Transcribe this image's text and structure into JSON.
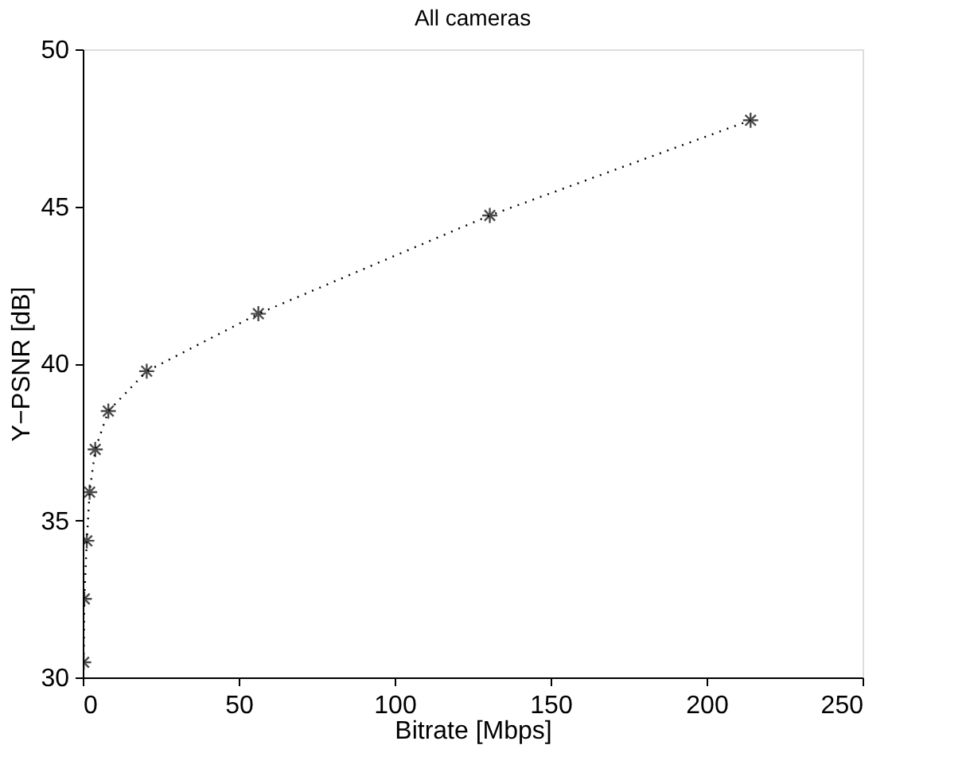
{
  "chart_data": {
    "type": "line",
    "title": "All cameras",
    "xlabel": "Bitrate [Mbps]",
    "ylabel": "Y−PSNR [dB]",
    "x": [
      0.3,
      0.5,
      1.3,
      2.2,
      4.0,
      8.2,
      20.5,
      56.3,
      130.5,
      214.1
    ],
    "series": [
      {
        "color": "#000000",
        "values": [
          30.48,
          32.5,
          34.35,
          35.9,
          37.26,
          38.48,
          39.75,
          41.58,
          44.71,
          47.74
        ]
      }
    ],
    "xlim": [
      0,
      250
    ],
    "xticks": [
      0,
      50,
      100,
      150,
      200,
      250
    ],
    "ylim": [
      30,
      50
    ],
    "yticks": [
      30,
      35,
      40,
      45,
      50
    ],
    "grid": false,
    "legend": false,
    "marker": "cross",
    "line_style": "dotted"
  }
}
